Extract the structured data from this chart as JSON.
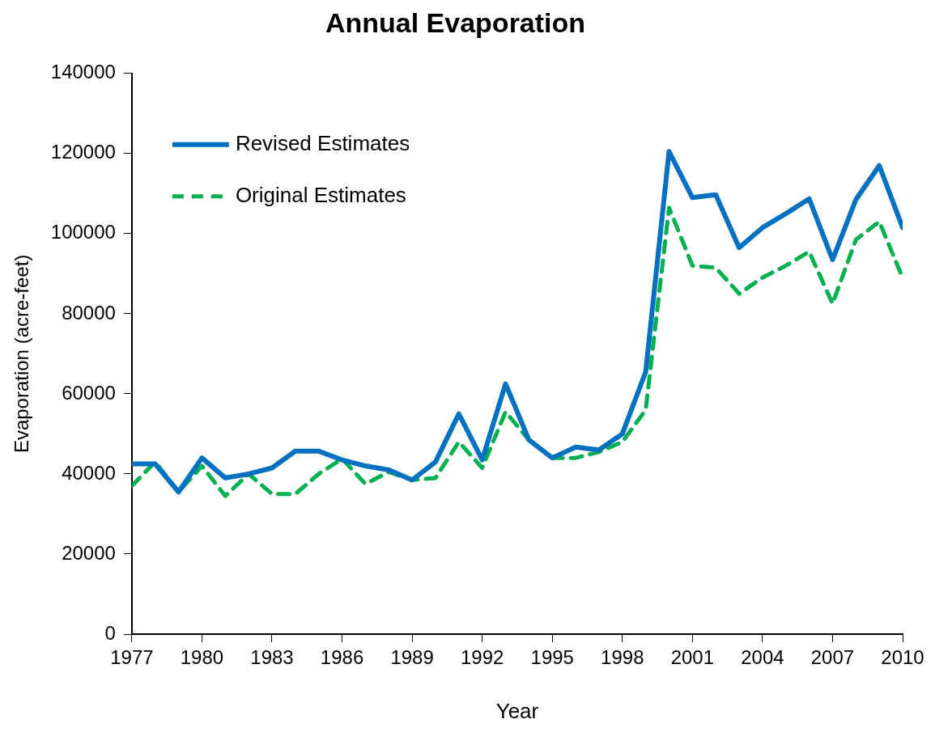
{
  "chart_data": {
    "type": "line",
    "title": "Annual Evaporation",
    "xlabel": "Year",
    "ylabel": "Evaporation (acre-feet)",
    "x": [
      1977,
      1978,
      1979,
      1980,
      1981,
      1982,
      1983,
      1984,
      1985,
      1986,
      1987,
      1988,
      1989,
      1990,
      1991,
      1992,
      1993,
      1994,
      1995,
      1996,
      1997,
      1998,
      1999,
      2000,
      2001,
      2002,
      2003,
      2004,
      2005,
      2006,
      2007,
      2008,
      2009,
      2010
    ],
    "series": [
      {
        "name": "Revised Estimates",
        "color": "#0070c0",
        "line_style": "solid",
        "values": [
          42500,
          42500,
          35500,
          44000,
          39000,
          40000,
          41500,
          45700,
          45700,
          43500,
          42000,
          41000,
          38500,
          43000,
          55000,
          43500,
          62500,
          48500,
          44000,
          46700,
          46000,
          50000,
          65500,
          120500,
          109000,
          109700,
          96500,
          101500,
          105000,
          108700,
          93500,
          108500,
          117000,
          101500
        ]
      },
      {
        "name": "Original Estimates",
        "color": "#00b050",
        "line_style": "dashed",
        "values": [
          37000,
          43000,
          35500,
          42000,
          34500,
          40000,
          35000,
          35000,
          40000,
          43800,
          37500,
          40500,
          38500,
          39000,
          48000,
          41500,
          55500,
          48500,
          44000,
          44000,
          45500,
          48000,
          56000,
          106500,
          92000,
          91500,
          85000,
          89000,
          92000,
          95500,
          82500,
          98500,
          103000,
          89000
        ]
      }
    ],
    "xlim": [
      1977,
      2010
    ],
    "xticks": [
      1977,
      1980,
      1983,
      1986,
      1989,
      1992,
      1995,
      1998,
      2001,
      2004,
      2007,
      2010
    ],
    "ylim": [
      0,
      140000
    ],
    "yticks": [
      0,
      20000,
      40000,
      60000,
      80000,
      100000,
      120000,
      140000
    ],
    "grid": false,
    "legend": "top left",
    "marker": "none"
  }
}
